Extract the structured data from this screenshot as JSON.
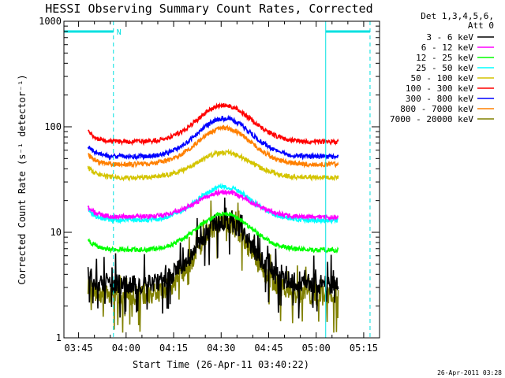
{
  "chart_data": {
    "type": "line",
    "title": "HESSI Observing Summary Count Rates, Corrected",
    "xlabel": "Start Time (26-Apr-11 03:40:22)",
    "ylabel": "Corrected Count Rate (s⁻¹ detector⁻¹)",
    "yscale": "log",
    "ylim": [
      1,
      1000
    ],
    "xlim": [
      "03:40:22",
      "05:20:00"
    ],
    "x_tick_labels": [
      "03:45",
      "04:00",
      "04:15",
      "04:30",
      "04:45",
      "05:00",
      "05:15"
    ],
    "x_tick_minutes": [
      225,
      240,
      255,
      270,
      285,
      300,
      315
    ],
    "y_tick_labels": [
      "1",
      "10",
      "100",
      "1000"
    ],
    "y_tick_values": [
      1,
      10,
      100,
      1000
    ],
    "legend_header": [
      "Det 1,3,4,5,6,",
      "Att 0"
    ],
    "legend_position": "right",
    "night_marker": "N",
    "night_start": "03:56",
    "night_end": "05:17",
    "solid_vlines": [
      "03:40:22",
      "05:03"
    ],
    "data_start": "03:48",
    "data_end": "05:07",
    "peak_time": "04:31",
    "series": [
      {
        "name": "3 - 6 keV",
        "color": "#000000",
        "baseline": 3.2,
        "peak": 13
      },
      {
        "name": "6 - 12 keV",
        "color": "#ff00ff",
        "baseline": 14,
        "peak": 24
      },
      {
        "name": "12 - 25 keV",
        "color": "#00ff00",
        "baseline": 6.8,
        "peak": 15
      },
      {
        "name": "25 - 50 keV",
        "color": "#00ffff",
        "baseline": 13,
        "peak": 27
      },
      {
        "name": "50 - 100 keV",
        "color": "#d4c400",
        "baseline": 33,
        "peak": 57
      },
      {
        "name": "100 - 300 keV",
        "color": "#ff0000",
        "baseline": 72,
        "peak": 160
      },
      {
        "name": "300 - 800 keV",
        "color": "#0000ff",
        "baseline": 52,
        "peak": 120
      },
      {
        "name": "800 - 7000 keV",
        "color": "#ff8000",
        "baseline": 44,
        "peak": 97
      },
      {
        "name": "7000 - 20000 keV",
        "color": "#808000",
        "baseline": 2.5,
        "peak": 12.5
      }
    ]
  },
  "footer": {
    "timestamp": "26-Apr-2011 03:28"
  }
}
